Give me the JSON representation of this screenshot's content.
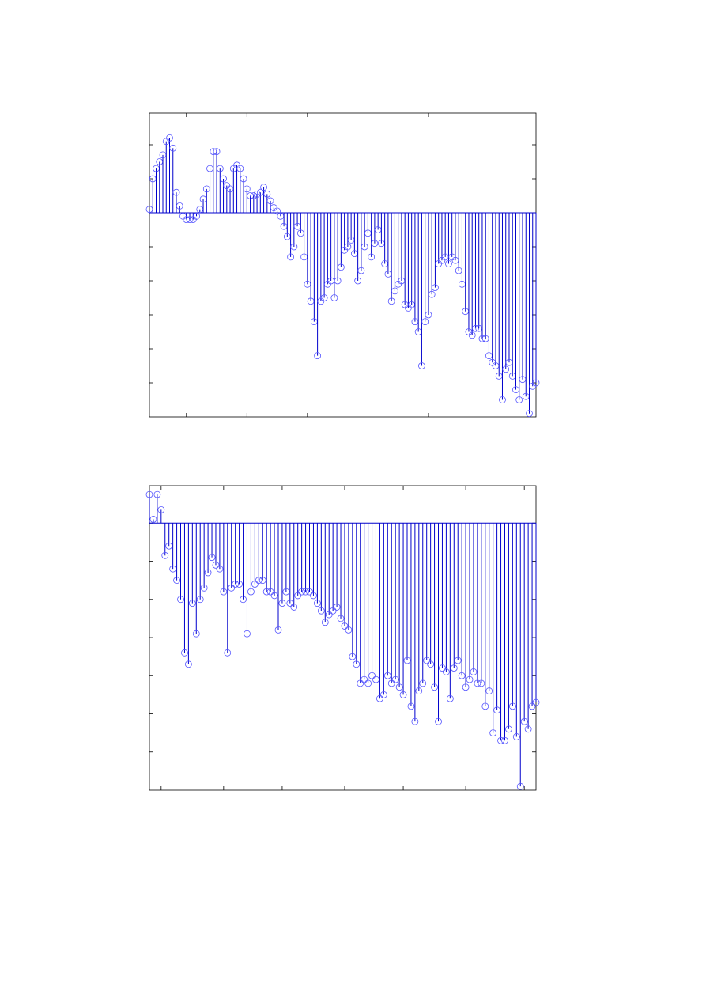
{
  "chart_data": [
    {
      "type": "stem",
      "color": "#0000cc",
      "marker_color": "#5555ff",
      "values": [
        0.1,
        1,
        1.3,
        1.5,
        1.7,
        2.1,
        2.2,
        1.9,
        0.6,
        0.2,
        -0.1,
        -0.2,
        -0.2,
        -0.2,
        -0.1,
        0.1,
        0.4,
        0.7,
        1.3,
        1.8,
        1.8,
        1.3,
        1.0,
        0.8,
        0.7,
        1.3,
        1.4,
        1.3,
        1.0,
        0.7,
        0.5,
        0.5,
        0.55,
        0.6,
        0.75,
        0.55,
        0.35,
        0.15,
        0.05,
        -0.1,
        -0.4,
        -0.7,
        -1.3,
        -1.0,
        -0.4,
        -0.6,
        -1.3,
        -2.1,
        -2.6,
        -3.2,
        -4.2,
        -2.6,
        -2.5,
        -2.1,
        -2.0,
        -2.5,
        -2.0,
        -1.6,
        -1.1,
        -1.0,
        -0.8,
        -1.2,
        -2.0,
        -1.7,
        -1.0,
        -0.6,
        -1.3,
        -0.9,
        -0.5,
        -0.9,
        -1.5,
        -1.8,
        -2.6,
        -2.3,
        -2.1,
        -2.0,
        -2.7,
        -2.8,
        -2.7,
        -3.2,
        -3.5,
        -4.5,
        -3.2,
        -3.0,
        -2.4,
        -2.2,
        -1.5,
        -1.4,
        -1.3,
        -1.5,
        -1.3,
        -1.4,
        -1.7,
        -2.1,
        -2.9,
        -3.5,
        -3.6,
        -3.4,
        -3.4,
        -3.7,
        -3.7,
        -4.2,
        -4.4,
        -4.5,
        -4.8,
        -5.5,
        -4.6,
        -4.4,
        -4.8,
        -5.2,
        -5.5,
        -4.9,
        -5.4,
        -5.9,
        -5.1,
        -5.0
      ],
      "xlim": [
        0,
        115
      ],
      "xticks": [
        11,
        29,
        47,
        65,
        83,
        101
      ],
      "ylim": [
        -6,
        2.93
      ],
      "yticks": [
        -5,
        -4,
        -3,
        -2,
        -1,
        0,
        1,
        2
      ]
    },
    {
      "type": "stem",
      "color": "#0000cc",
      "marker_color": "#5555ff",
      "values": [
        0.75,
        0.1,
        0.75,
        0.35,
        -0.85,
        -0.6,
        -1.2,
        -1.5,
        -2.0,
        -3.4,
        -3.7,
        -2.1,
        -2.9,
        -2.0,
        -1.7,
        -1.3,
        -0.9,
        -1.1,
        -1.2,
        -1.8,
        -3.4,
        -1.7,
        -1.6,
        -1.6,
        -2.0,
        -2.9,
        -1.8,
        -1.6,
        -1.5,
        -1.5,
        -1.8,
        -1.8,
        -1.9,
        -2.8,
        -2.1,
        -1.8,
        -2.1,
        -2.2,
        -1.9,
        -1.8,
        -1.8,
        -1.8,
        -1.9,
        -2.1,
        -2.3,
        -2.6,
        -2.4,
        -2.3,
        -2.2,
        -2.5,
        -2.7,
        -2.8,
        -3.5,
        -3.7,
        -4.2,
        -4.1,
        -4.2,
        -4.0,
        -4.1,
        -4.6,
        -4.5,
        -4.0,
        -4.2,
        -4.1,
        -4.3,
        -4.5,
        -3.6,
        -4.8,
        -5.2,
        -4.4,
        -4.2,
        -3.6,
        -3.7,
        -4.3,
        -5.2,
        -3.8,
        -3.9,
        -4.6,
        -3.8,
        -3.6,
        -4.0,
        -4.3,
        -4.1,
        -3.9,
        -4.2,
        -4.2,
        -4.8,
        -4.4,
        -5.5,
        -4.9,
        -5.7,
        -5.7,
        -5.4,
        -4.8,
        -5.6,
        -6.9,
        -5.2,
        -5.4,
        -4.8,
        -4.7
      ],
      "xlim": [
        0,
        99
      ],
      "xticks": [
        3,
        19,
        34,
        50,
        65,
        81,
        96
      ],
      "ylim": [
        -7,
        0.98
      ],
      "yticks": [
        -6,
        -5,
        -4,
        -3,
        -2,
        -1,
        0
      ]
    }
  ]
}
